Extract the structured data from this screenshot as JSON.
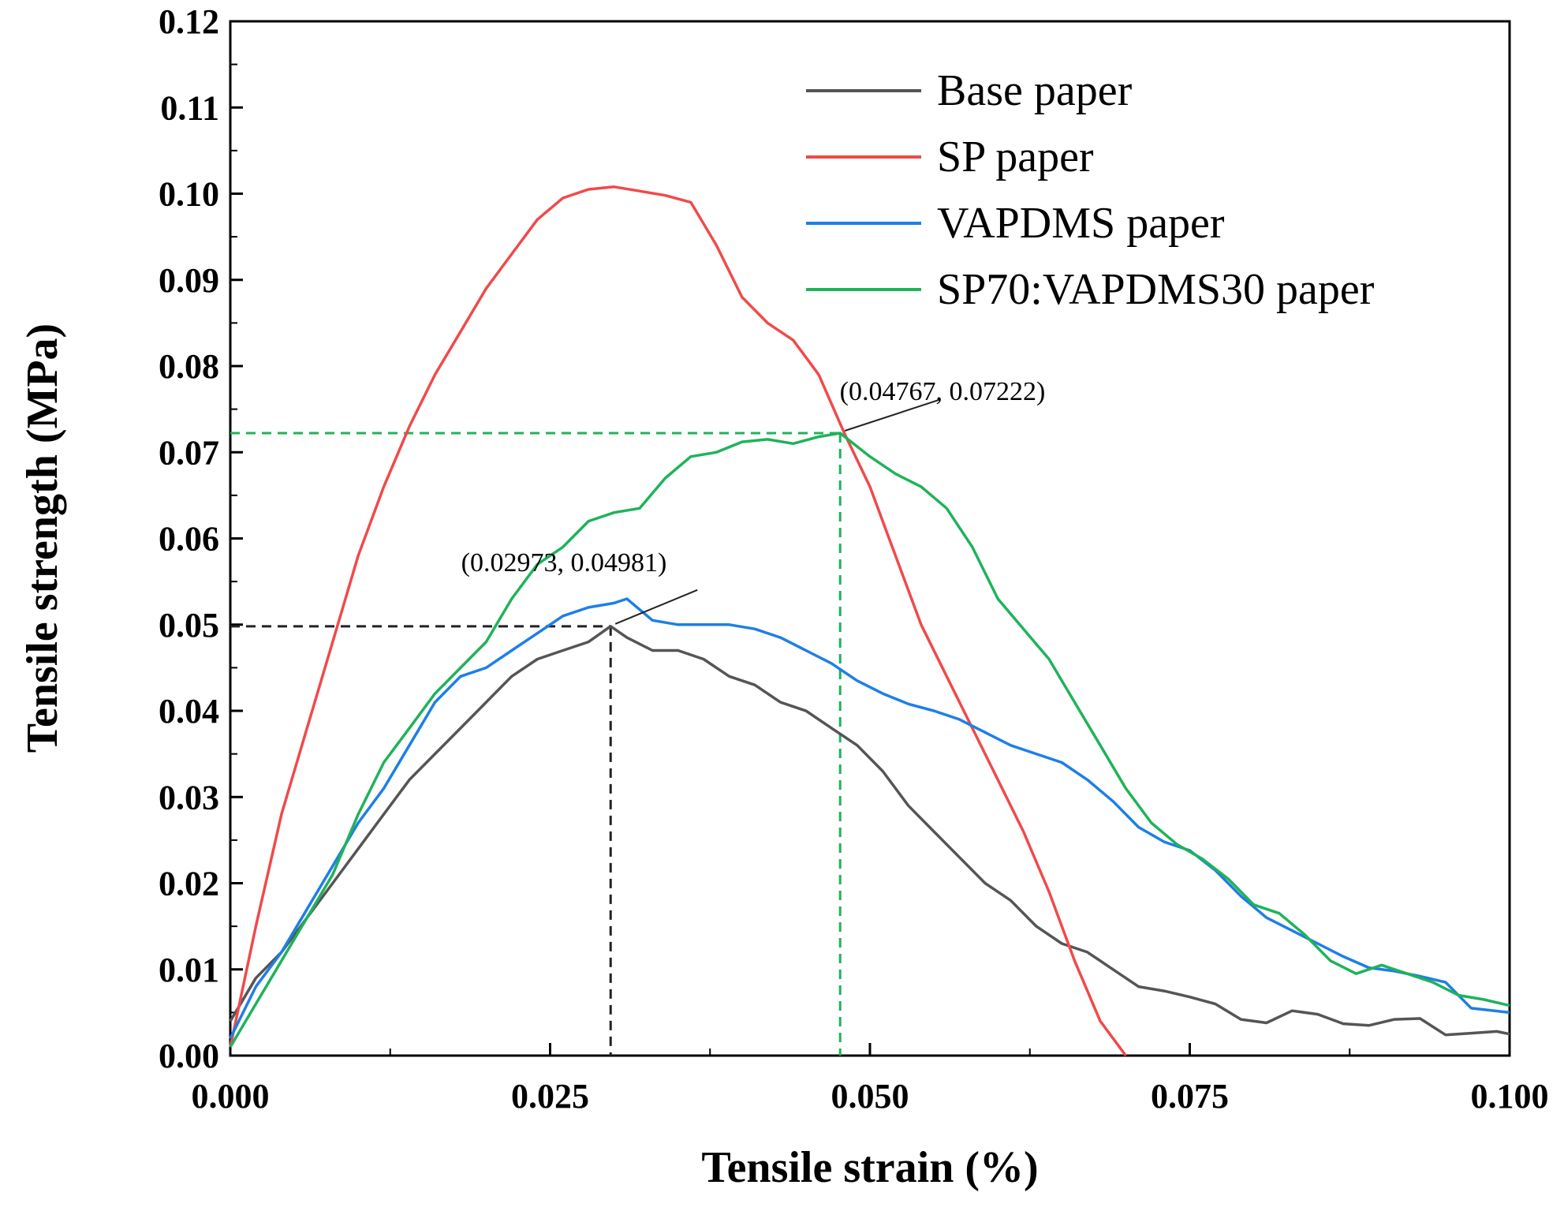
{
  "chart_data": {
    "type": "line",
    "title": "",
    "xlabel": "Tensile strain (%)",
    "ylabel": "Tensile strength (MPa)",
    "xlim": [
      0,
      0.1
    ],
    "ylim": [
      0,
      0.12
    ],
    "xticks": [
      0,
      0.025,
      0.05,
      0.075,
      0.1
    ],
    "xtick_labels": [
      "0.000",
      "0.025",
      "0.050",
      "0.075",
      "0.100"
    ],
    "yticks": [
      0,
      0.01,
      0.02,
      0.03,
      0.04,
      0.05,
      0.06,
      0.07,
      0.08,
      0.09,
      0.1,
      0.11,
      0.12
    ],
    "ytick_labels": [
      "0.00",
      "0.01",
      "0.02",
      "0.03",
      "0.04",
      "0.05",
      "0.06",
      "0.07",
      "0.08",
      "0.09",
      "0.10",
      "0.11",
      "0.12"
    ],
    "grid": false,
    "legend_position": "top-right",
    "series": [
      {
        "name": "Base paper",
        "color": "#555555",
        "points": [
          [
            0,
            0.004
          ],
          [
            0.002,
            0.009
          ],
          [
            0.004,
            0.012
          ],
          [
            0.006,
            0.016
          ],
          [
            0.008,
            0.02
          ],
          [
            0.01,
            0.024
          ],
          [
            0.012,
            0.028
          ],
          [
            0.014,
            0.032
          ],
          [
            0.016,
            0.035
          ],
          [
            0.018,
            0.038
          ],
          [
            0.02,
            0.041
          ],
          [
            0.022,
            0.044
          ],
          [
            0.024,
            0.046
          ],
          [
            0.026,
            0.047
          ],
          [
            0.028,
            0.048
          ],
          [
            0.02973,
            0.04981
          ],
          [
            0.031,
            0.0485
          ],
          [
            0.033,
            0.047
          ],
          [
            0.035,
            0.047
          ],
          [
            0.037,
            0.046
          ],
          [
            0.039,
            0.044
          ],
          [
            0.041,
            0.043
          ],
          [
            0.043,
            0.041
          ],
          [
            0.045,
            0.04
          ],
          [
            0.047,
            0.038
          ],
          [
            0.049,
            0.036
          ],
          [
            0.051,
            0.033
          ],
          [
            0.053,
            0.029
          ],
          [
            0.055,
            0.026
          ],
          [
            0.057,
            0.023
          ],
          [
            0.059,
            0.02
          ],
          [
            0.061,
            0.018
          ],
          [
            0.063,
            0.015
          ],
          [
            0.065,
            0.013
          ],
          [
            0.067,
            0.012
          ],
          [
            0.069,
            0.01
          ],
          [
            0.071,
            0.008
          ],
          [
            0.073,
            0.0075
          ],
          [
            0.075,
            0.0068
          ],
          [
            0.077,
            0.006
          ],
          [
            0.079,
            0.0042
          ],
          [
            0.081,
            0.0038
          ],
          [
            0.083,
            0.0052
          ],
          [
            0.085,
            0.0048
          ],
          [
            0.087,
            0.0037
          ],
          [
            0.089,
            0.0035
          ],
          [
            0.091,
            0.0042
          ],
          [
            0.093,
            0.0043
          ],
          [
            0.095,
            0.0024
          ],
          [
            0.097,
            0.0026
          ],
          [
            0.099,
            0.0028
          ],
          [
            0.1,
            0.0025
          ]
        ]
      },
      {
        "name": "SP paper",
        "color": "#f04a4a",
        "points": [
          [
            0,
            0.001
          ],
          [
            0.002,
            0.015
          ],
          [
            0.004,
            0.028
          ],
          [
            0.006,
            0.038
          ],
          [
            0.008,
            0.048
          ],
          [
            0.01,
            0.058
          ],
          [
            0.012,
            0.066
          ],
          [
            0.014,
            0.073
          ],
          [
            0.016,
            0.079
          ],
          [
            0.018,
            0.084
          ],
          [
            0.02,
            0.089
          ],
          [
            0.022,
            0.093
          ],
          [
            0.024,
            0.097
          ],
          [
            0.026,
            0.0995
          ],
          [
            0.028,
            0.1005
          ],
          [
            0.03,
            0.1008
          ],
          [
            0.032,
            0.1003
          ],
          [
            0.034,
            0.0998
          ],
          [
            0.036,
            0.099
          ],
          [
            0.038,
            0.094
          ],
          [
            0.04,
            0.088
          ],
          [
            0.042,
            0.085
          ],
          [
            0.044,
            0.083
          ],
          [
            0.046,
            0.079
          ],
          [
            0.048,
            0.0722
          ],
          [
            0.05,
            0.066
          ],
          [
            0.052,
            0.058
          ],
          [
            0.054,
            0.05
          ],
          [
            0.056,
            0.044
          ],
          [
            0.058,
            0.038
          ],
          [
            0.06,
            0.032
          ],
          [
            0.062,
            0.026
          ],
          [
            0.064,
            0.019
          ],
          [
            0.066,
            0.011
          ],
          [
            0.068,
            0.004
          ],
          [
            0.07,
            0.0
          ]
        ]
      },
      {
        "name": "VAPDMS paper",
        "color": "#1e7fe6",
        "points": [
          [
            0,
            0.002
          ],
          [
            0.002,
            0.008
          ],
          [
            0.004,
            0.012
          ],
          [
            0.006,
            0.017
          ],
          [
            0.008,
            0.022
          ],
          [
            0.01,
            0.027
          ],
          [
            0.012,
            0.031
          ],
          [
            0.014,
            0.036
          ],
          [
            0.016,
            0.041
          ],
          [
            0.018,
            0.044
          ],
          [
            0.02,
            0.045
          ],
          [
            0.022,
            0.047
          ],
          [
            0.024,
            0.049
          ],
          [
            0.026,
            0.051
          ],
          [
            0.028,
            0.052
          ],
          [
            0.03,
            0.0525
          ],
          [
            0.031,
            0.053
          ],
          [
            0.033,
            0.0505
          ],
          [
            0.035,
            0.05
          ],
          [
            0.037,
            0.05
          ],
          [
            0.039,
            0.05
          ],
          [
            0.041,
            0.0495
          ],
          [
            0.043,
            0.0485
          ],
          [
            0.045,
            0.047
          ],
          [
            0.047,
            0.0455
          ],
          [
            0.049,
            0.0435
          ],
          [
            0.051,
            0.042
          ],
          [
            0.053,
            0.0408
          ],
          [
            0.055,
            0.04
          ],
          [
            0.057,
            0.039
          ],
          [
            0.059,
            0.0375
          ],
          [
            0.061,
            0.036
          ],
          [
            0.063,
            0.035
          ],
          [
            0.065,
            0.034
          ],
          [
            0.067,
            0.032
          ],
          [
            0.069,
            0.0295
          ],
          [
            0.071,
            0.0265
          ],
          [
            0.073,
            0.0248
          ],
          [
            0.075,
            0.0238
          ],
          [
            0.077,
            0.0215
          ],
          [
            0.079,
            0.0185
          ],
          [
            0.081,
            0.016
          ],
          [
            0.083,
            0.0145
          ],
          [
            0.085,
            0.013
          ],
          [
            0.087,
            0.0115
          ],
          [
            0.089,
            0.0102
          ],
          [
            0.091,
            0.0098
          ],
          [
            0.093,
            0.0092
          ],
          [
            0.095,
            0.0085
          ],
          [
            0.097,
            0.0055
          ],
          [
            0.1,
            0.005
          ]
        ]
      },
      {
        "name": "SP70:VAPDMS30 paper",
        "color": "#1fb35a",
        "points": [
          [
            0,
            0.001
          ],
          [
            0.002,
            0.006
          ],
          [
            0.004,
            0.011
          ],
          [
            0.006,
            0.016
          ],
          [
            0.008,
            0.021
          ],
          [
            0.01,
            0.028
          ],
          [
            0.012,
            0.034
          ],
          [
            0.014,
            0.038
          ],
          [
            0.016,
            0.042
          ],
          [
            0.018,
            0.045
          ],
          [
            0.02,
            0.048
          ],
          [
            0.022,
            0.053
          ],
          [
            0.024,
            0.057
          ],
          [
            0.026,
            0.059
          ],
          [
            0.028,
            0.062
          ],
          [
            0.03,
            0.063
          ],
          [
            0.032,
            0.0635
          ],
          [
            0.034,
            0.067
          ],
          [
            0.036,
            0.0695
          ],
          [
            0.038,
            0.07
          ],
          [
            0.04,
            0.0712
          ],
          [
            0.042,
            0.0715
          ],
          [
            0.044,
            0.071
          ],
          [
            0.046,
            0.0718
          ],
          [
            0.04767,
            0.07222
          ],
          [
            0.05,
            0.0695
          ],
          [
            0.052,
            0.0675
          ],
          [
            0.054,
            0.066
          ],
          [
            0.056,
            0.0635
          ],
          [
            0.058,
            0.059
          ],
          [
            0.06,
            0.053
          ],
          [
            0.062,
            0.0495
          ],
          [
            0.064,
            0.046
          ],
          [
            0.066,
            0.041
          ],
          [
            0.068,
            0.036
          ],
          [
            0.07,
            0.031
          ],
          [
            0.072,
            0.027
          ],
          [
            0.074,
            0.0245
          ],
          [
            0.076,
            0.0228
          ],
          [
            0.078,
            0.0205
          ],
          [
            0.08,
            0.0175
          ],
          [
            0.082,
            0.0165
          ],
          [
            0.084,
            0.014
          ],
          [
            0.086,
            0.011
          ],
          [
            0.088,
            0.0095
          ],
          [
            0.09,
            0.0105
          ],
          [
            0.092,
            0.0095
          ],
          [
            0.094,
            0.0085
          ],
          [
            0.096,
            0.007
          ],
          [
            0.098,
            0.0065
          ],
          [
            0.1,
            0.0058
          ]
        ]
      }
    ],
    "annotations": [
      {
        "label": "(0.02973, 0.04981)",
        "x": 0.02973,
        "y": 0.04981,
        "color": "#222222"
      },
      {
        "label": "(0.04767, 0.07222)",
        "x": 0.04767,
        "y": 0.07222,
        "color": "#1fb35a"
      }
    ]
  }
}
